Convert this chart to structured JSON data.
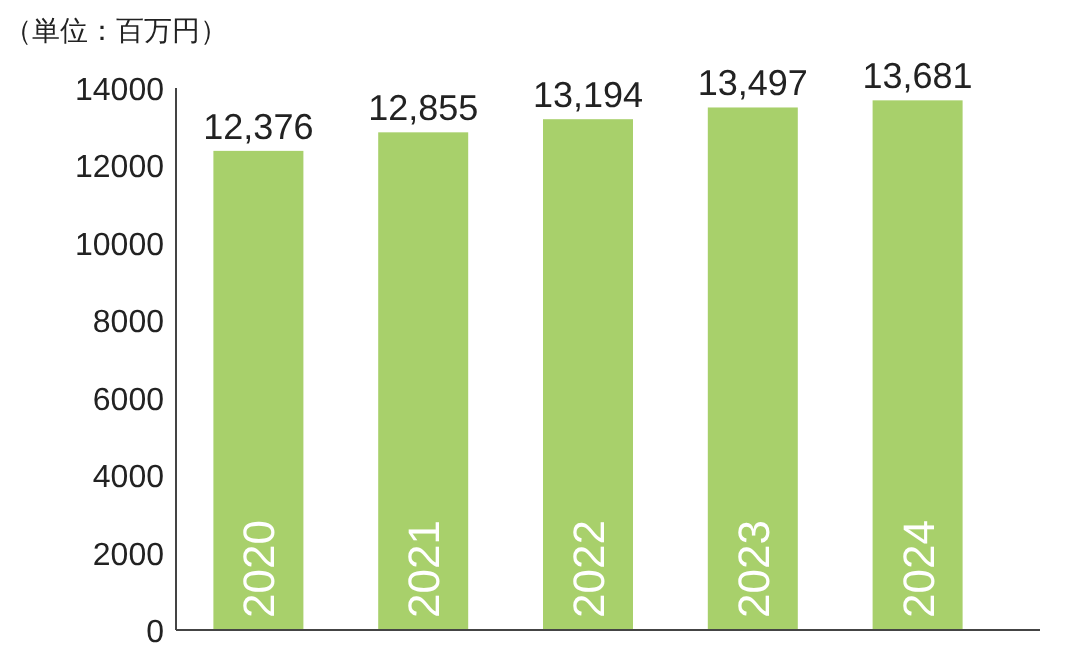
{
  "chart_data": {
    "type": "bar",
    "ylabel": "（単位：百万円）",
    "categories": [
      "2020",
      "2021",
      "2022",
      "2023",
      "2024"
    ],
    "values": [
      12376,
      12855,
      13194,
      13497,
      13681
    ],
    "value_labels": [
      "12,376",
      "12,855",
      "13,194",
      "13,497",
      "13,681"
    ],
    "color": "#a8d06b",
    "ylim": [
      0,
      14000
    ],
    "yticks": [
      0,
      2000,
      4000,
      6000,
      8000,
      10000,
      12000,
      14000
    ],
    "grid": false
  }
}
